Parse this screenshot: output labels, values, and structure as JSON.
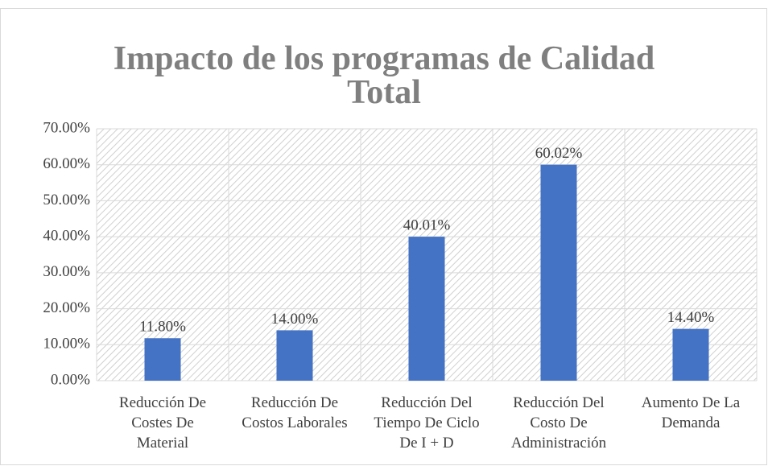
{
  "chart_data": {
    "type": "bar",
    "title": "Impacto de los programas de Calidad Total",
    "categories": [
      "Reducción De Costes De Material",
      "Reducción De Costos Laborales",
      "Reducción Del Tiempo De Ciclo De I + D",
      "Reducción Del Costo De Administración",
      "Aumento De La Demanda"
    ],
    "values": [
      11.8,
      14.0,
      40.01,
      60.02,
      14.4
    ],
    "value_labels": [
      "11.80%",
      "14.00%",
      "40.01%",
      "60.02%",
      "14.40%"
    ],
    "color": "#4472c4",
    "ylim": [
      0,
      70
    ],
    "yticks": [
      {
        "value": 0,
        "label": "0.00%"
      },
      {
        "value": 10,
        "label": "10.00%"
      },
      {
        "value": 20,
        "label": "20.00%"
      },
      {
        "value": 30,
        "label": "30.00%"
      },
      {
        "value": 40,
        "label": "40.00%"
      },
      {
        "value": 50,
        "label": "50.00%"
      },
      {
        "value": 60,
        "label": "60.00%"
      },
      {
        "value": 70,
        "label": "70.00%"
      }
    ],
    "grid": true
  }
}
